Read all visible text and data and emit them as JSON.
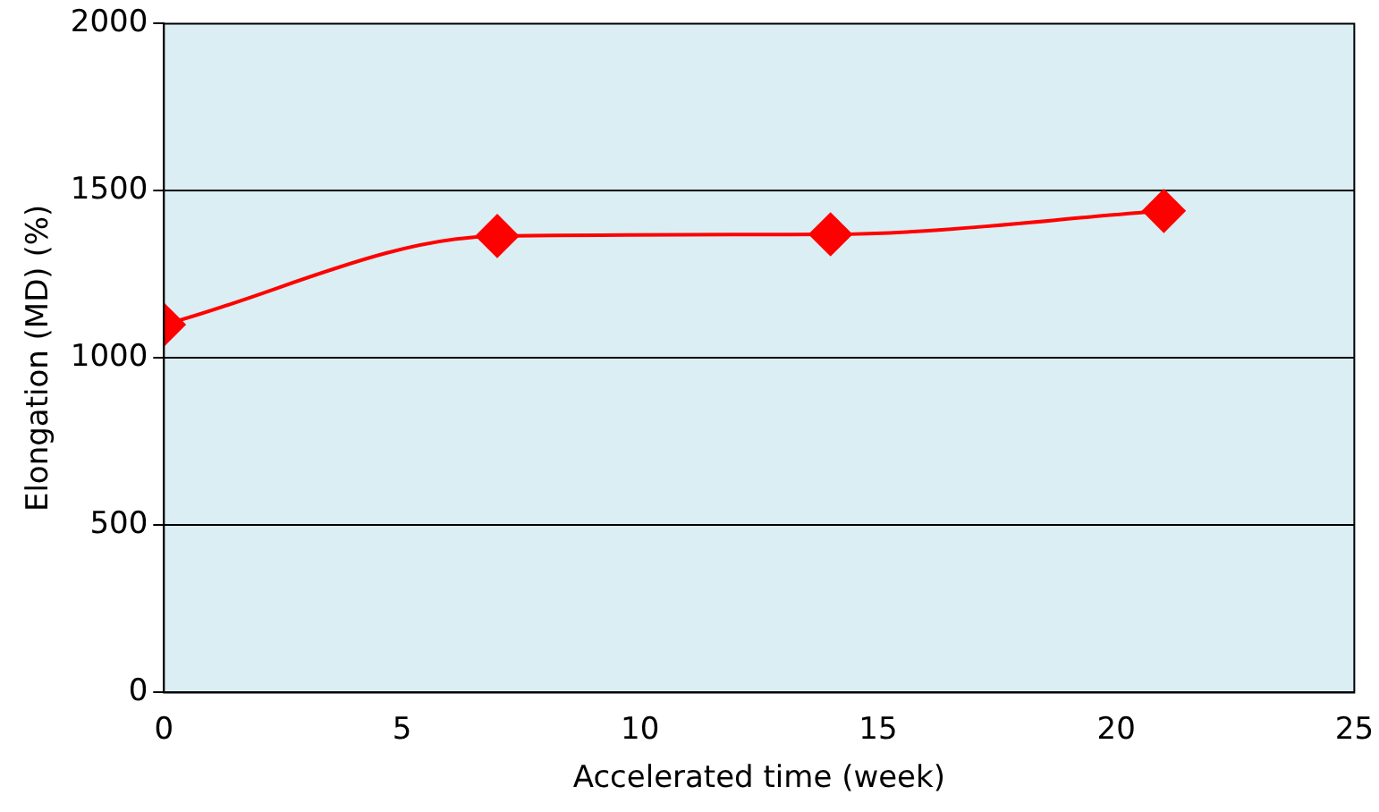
{
  "chart_data": {
    "type": "line",
    "xlabel": "Accelerated time (week)",
    "ylabel": "Elongation (MD) (%)",
    "x": [
      0,
      7,
      14,
      21
    ],
    "series": [
      {
        "color": "#ff0000",
        "values": [
          1100,
          1365,
          1370,
          1440
        ]
      }
    ],
    "xlim": [
      0,
      25
    ],
    "xticks": [
      0,
      5,
      10,
      15,
      20,
      25
    ],
    "ylim": [
      0,
      2000
    ],
    "yticks": [
      0,
      500,
      1000,
      1500,
      2000
    ],
    "grid": "y",
    "legend": false,
    "marker": "diamond",
    "line_style": "solid"
  }
}
